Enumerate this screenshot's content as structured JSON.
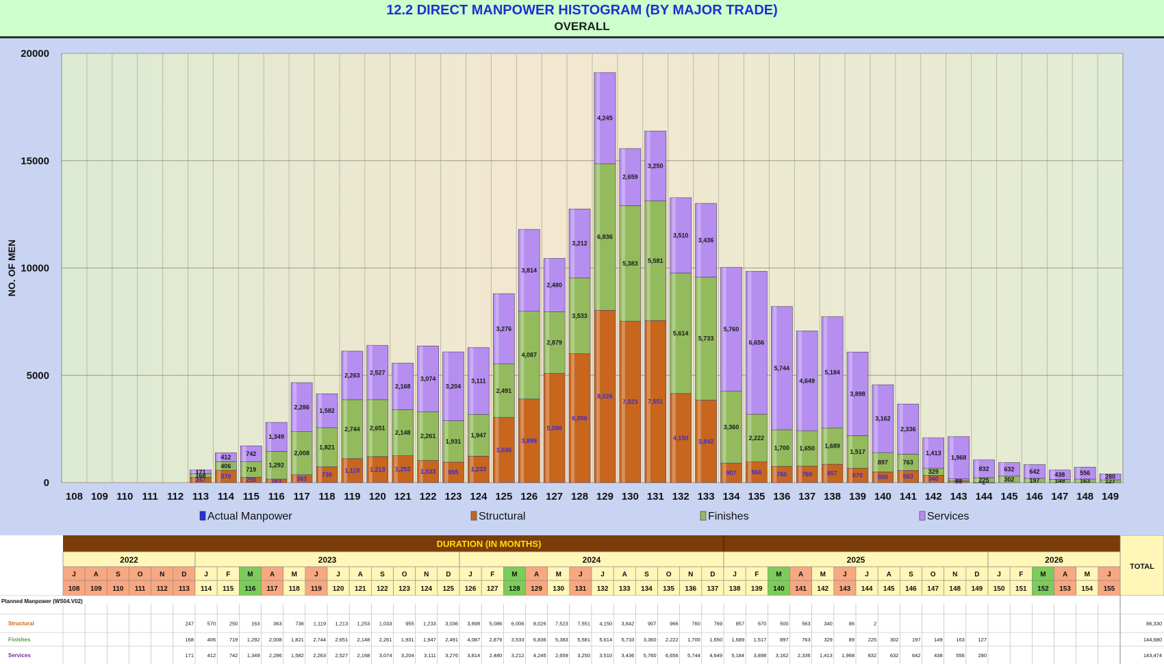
{
  "header": {
    "title": "12.2 DIRECT MANPOWER HISTOGRAM (BY MAJOR TRADE)",
    "subtitle": "OVERALL"
  },
  "chart_data": {
    "type": "bar",
    "stacked": true,
    "ylabel": "NO. OF MEN",
    "ylim": [
      0,
      20000
    ],
    "y_ticks": [
      0,
      5000,
      10000,
      15000,
      20000
    ],
    "grid": true,
    "legend_position": "bottom",
    "categories": [
      "108",
      "109",
      "110",
      "111",
      "112",
      "113",
      "114",
      "115",
      "116",
      "117",
      "118",
      "119",
      "120",
      "121",
      "122",
      "123",
      "124",
      "125",
      "126",
      "127",
      "128",
      "129",
      "130",
      "131",
      "132",
      "133",
      "134",
      "135",
      "136",
      "137",
      "138",
      "139",
      "140",
      "141",
      "142",
      "143",
      "144",
      "145",
      "146",
      "147",
      "148",
      "149"
    ],
    "series": [
      {
        "name": "Actual Manpower",
        "color": "#2233dd",
        "values": [
          0,
          0,
          0,
          0,
          0,
          0,
          0,
          0,
          0,
          0,
          0,
          0,
          0,
          0,
          0,
          0,
          0,
          0,
          0,
          0,
          0,
          0,
          0,
          0,
          0,
          0,
          0,
          0,
          0,
          0,
          0,
          0,
          0,
          0,
          0,
          0,
          0,
          0,
          0,
          0,
          0,
          0
        ]
      },
      {
        "name": "Structural",
        "color": "#c8661e",
        "values": [
          0,
          0,
          0,
          0,
          0,
          247,
          570,
          250,
          163,
          363,
          736,
          1119,
          1213,
          1253,
          1033,
          955,
          1233,
          3036,
          3898,
          5086,
          6006,
          8026,
          7523,
          7551,
          4150,
          3842,
          907,
          966,
          760,
          769,
          857,
          670,
          500,
          563,
          340,
          86,
          2,
          0,
          0,
          0,
          0,
          0
        ],
        "labels": [
          "",
          "",
          "",
          "",
          "",
          "247",
          "570",
          "250",
          "163",
          "363",
          "736",
          "1,119",
          "1,213",
          "1,253",
          "1,033",
          "955",
          "1,233",
          "3,036",
          "3,898",
          "5,086",
          "6,006",
          "8,026",
          "7,523",
          "7,551",
          "4,150",
          "3,842",
          "907",
          "966",
          "760",
          "769",
          "857",
          "670",
          "500",
          "563",
          "340",
          "86",
          "2",
          "",
          "",
          "",
          "",
          ""
        ]
      },
      {
        "name": "Finishes",
        "color": "#93bb5e",
        "values": [
          0,
          0,
          0,
          0,
          0,
          168,
          406,
          719,
          1292,
          2008,
          1821,
          2744,
          2651,
          2148,
          2261,
          1931,
          1947,
          2491,
          4087,
          2879,
          3533,
          6836,
          5383,
          5581,
          5614,
          5733,
          3360,
          2222,
          1700,
          1650,
          1689,
          1517,
          897,
          763,
          329,
          89,
          225,
          302,
          197,
          149,
          163,
          127
        ],
        "labels": [
          "",
          "",
          "",
          "",
          "",
          "168",
          "406",
          "719",
          "1,292",
          "2,008",
          "1,821",
          "2,744",
          "2,651",
          "2,148",
          "2,261",
          "1,931",
          "1,947",
          "2,491",
          "4,087",
          "2,879",
          "3,533",
          "6,836",
          "5,383",
          "5,581",
          "5,614",
          "5,733",
          "3,360",
          "2,222",
          "1,700",
          "1,650",
          "1,689",
          "1,517",
          "897",
          "763",
          "329",
          "89",
          "225",
          "302",
          "197",
          "149",
          "163",
          "127"
        ]
      },
      {
        "name": "Services",
        "color": "#b68ef0",
        "values": [
          0,
          0,
          0,
          0,
          0,
          171,
          412,
          742,
          1349,
          2286,
          1582,
          2263,
          2527,
          2168,
          3074,
          3204,
          3111,
          3276,
          3814,
          2480,
          3212,
          4245,
          2659,
          3250,
          3510,
          3436,
          5760,
          6656,
          5744,
          4649,
          5184,
          3898,
          3162,
          2336,
          1413,
          1968,
          832,
          632,
          642,
          438,
          556,
          280
        ],
        "labels": [
          "",
          "",
          "",
          "",
          "",
          "171",
          "412",
          "742",
          "1,349",
          "2,286",
          "1,582",
          "2,263",
          "2,527",
          "2,168",
          "3,074",
          "3,204",
          "3,111",
          "3,276",
          "3,814",
          "2,480",
          "3,212",
          "4,245",
          "2,659",
          "3,250",
          "3,510",
          "3,436",
          "5,760",
          "6,656",
          "5,744",
          "4,649",
          "5,184",
          "3,898",
          "3,162",
          "2,336",
          "1,413",
          "1,968",
          "832",
          "632",
          "642",
          "438",
          "556",
          "280"
        ]
      }
    ]
  },
  "table": {
    "duration_label": "DURATION (IN MONTHS)",
    "total_label": "TOTAL",
    "years": [
      {
        "label": "2022",
        "span": 6
      },
      {
        "label": "2023",
        "span": 12
      },
      {
        "label": "2024",
        "span": 12
      },
      {
        "label": "2025",
        "span": 12
      },
      {
        "label": "2026",
        "span": 6
      }
    ],
    "month_letters": [
      "J",
      "A",
      "S",
      "O",
      "N",
      "D",
      "J",
      "F",
      "M",
      "A",
      "M",
      "J",
      "J",
      "A",
      "S",
      "O",
      "N",
      "D",
      "J",
      "F",
      "M",
      "A",
      "M",
      "J",
      "J",
      "A",
      "S",
      "O",
      "N",
      "D",
      "J",
      "F",
      "M",
      "A",
      "M",
      "J",
      "J",
      "A",
      "S",
      "O",
      "N",
      "D",
      "J",
      "F",
      "M",
      "A",
      "M",
      "J"
    ],
    "month_numbers": [
      "108",
      "109",
      "110",
      "111",
      "112",
      "113",
      "114",
      "115",
      "116",
      "117",
      "118",
      "119",
      "120",
      "121",
      "122",
      "123",
      "124",
      "125",
      "126",
      "127",
      "128",
      "129",
      "130",
      "131",
      "132",
      "133",
      "134",
      "135",
      "136",
      "137",
      "138",
      "139",
      "140",
      "141",
      "142",
      "143",
      "144",
      "145",
      "146",
      "147",
      "148",
      "149",
      "150",
      "151",
      "152",
      "153",
      "154",
      "155"
    ],
    "planned_label": "Planned Manpower (WS04.V02)",
    "rows": [
      {
        "label": "Structural",
        "label_color": "#c8661e",
        "values": [
          "",
          "",
          "",
          "",
          "",
          "247",
          "570",
          "250",
          "163",
          "363",
          "736",
          "1,119",
          "1,213",
          "1,253",
          "1,033",
          "955",
          "1,233",
          "3,036",
          "3,898",
          "5,086",
          "6,006",
          "8,026",
          "7,523",
          "7,551",
          "4,150",
          "3,842",
          "907",
          "966",
          "760",
          "769",
          "857",
          "670",
          "500",
          "563",
          "340",
          "86",
          "2",
          "",
          "",
          "",
          "",
          "",
          "",
          "",
          "",
          "",
          "",
          ""
        ],
        "total": "86,330"
      },
      {
        "label": "Finishes",
        "label_color": "#5aa03a",
        "values": [
          "",
          "",
          "",
          "",
          "",
          "168",
          "406",
          "719",
          "1,292",
          "2,008",
          "1,821",
          "2,744",
          "2,651",
          "2,148",
          "2,261",
          "1,931",
          "1,947",
          "2,491",
          "4,087",
          "2,879",
          "3,533",
          "6,836",
          "5,383",
          "5,581",
          "5,614",
          "5,733",
          "3,360",
          "2,222",
          "1,700",
          "1,650",
          "1,689",
          "1,517",
          "897",
          "763",
          "329",
          "89",
          "225",
          "302",
          "197",
          "149",
          "163",
          "127",
          "",
          "",
          "",
          "",
          "",
          ""
        ],
        "total": "144,680"
      },
      {
        "label": "Services",
        "label_color": "#7a2aa0",
        "values": [
          "",
          "",
          "",
          "",
          "",
          "171",
          "412",
          "742",
          "1,349",
          "2,286",
          "1,582",
          "2,263",
          "2,527",
          "2,168",
          "3,074",
          "3,204",
          "3,111",
          "3,276",
          "3,814",
          "2,480",
          "3,212",
          "4,245",
          "2,659",
          "3,250",
          "3,510",
          "3,436",
          "5,760",
          "6,656",
          "5,744",
          "4,649",
          "5,184",
          "3,898",
          "3,162",
          "2,336",
          "1,413",
          "1,968",
          "832",
          "632",
          "642",
          "438",
          "556",
          "280",
          "",
          "",
          "",
          "",
          "",
          ""
        ],
        "total": "143,474"
      }
    ]
  }
}
